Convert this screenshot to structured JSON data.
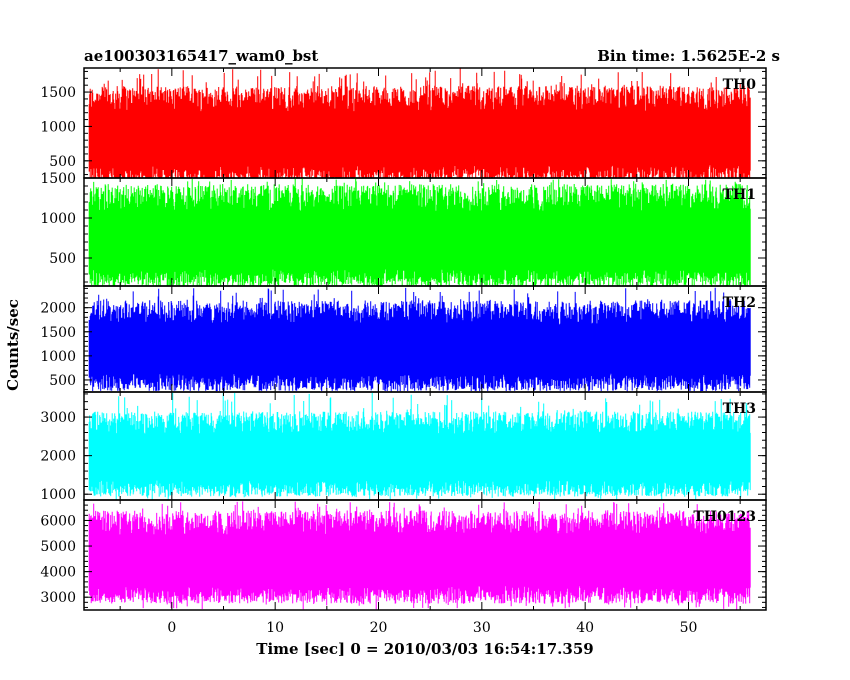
{
  "chart_data": {
    "type": "line",
    "title_left": "ae100303165417_wam0_bst",
    "title_right": "Bin time: 1.5625E-2 s",
    "xlabel": "Time [sec] 0 = 2010/03/03 16:54:17.359",
    "ylabel": "Counts/sec",
    "xlim": [
      -8.5,
      57.5
    ],
    "x_ticks": [
      0,
      10,
      20,
      30,
      40,
      50
    ],
    "x_range_data": [
      -8,
      56
    ],
    "bin_time_s": 0.015625,
    "grid": false,
    "panels": [
      {
        "name": "TH0",
        "color": "#ff0000",
        "ylim": [
          250,
          1850
        ],
        "y_ticks": [
          500,
          1000,
          1500
        ],
        "typical_low": 300,
        "typical_high": 1400,
        "min": 200,
        "max": 1850
      },
      {
        "name": "TH1",
        "color": "#00ff00",
        "ylim": [
          150,
          1500
        ],
        "y_ticks": [
          500,
          1000,
          1500
        ],
        "typical_low": 250,
        "typical_high": 1250,
        "min": 150,
        "max": 1500
      },
      {
        "name": "TH2",
        "color": "#0000ff",
        "ylim": [
          250,
          2450
        ],
        "y_ticks": [
          500,
          1000,
          1500,
          2000
        ],
        "typical_low": 450,
        "typical_high": 1900,
        "min": 250,
        "max": 2450
      },
      {
        "name": "TH3",
        "color": "#00ffff",
        "ylim": [
          850,
          3650
        ],
        "y_ticks": [
          1000,
          2000,
          3000
        ],
        "typical_low": 1150,
        "typical_high": 2850,
        "min": 850,
        "max": 3650
      },
      {
        "name": "TH0123",
        "color": "#ff00ff",
        "ylim": [
          2500,
          6800
        ],
        "y_ticks": [
          3000,
          4000,
          5000,
          6000
        ],
        "typical_low": 3100,
        "typical_high": 5900,
        "min": 2500,
        "max": 6800
      }
    ]
  }
}
